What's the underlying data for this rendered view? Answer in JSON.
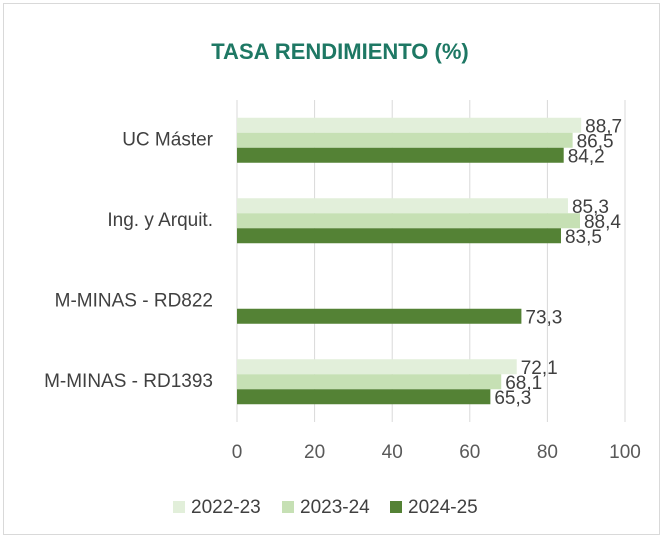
{
  "chart_data": {
    "type": "bar",
    "orientation": "horizontal",
    "title": "TASA RENDIMIENTO (%)",
    "categories": [
      "UC Máster",
      "Ing. y Arquit.",
      "M-MINAS  - RD822",
      "M-MINAS - RD1393"
    ],
    "series": [
      {
        "name": "2022-23",
        "color": "#e2efda",
        "values": [
          88.7,
          85.3,
          null,
          72.1
        ],
        "value_labels": [
          "88,7",
          "85,3",
          null,
          "72,1"
        ]
      },
      {
        "name": "2023-24",
        "color": "#c6e0b4",
        "values": [
          86.5,
          88.4,
          null,
          68.1
        ],
        "value_labels": [
          "86,5",
          "88,4",
          null,
          "68,1"
        ]
      },
      {
        "name": "2024-25",
        "color": "#548235",
        "values": [
          84.2,
          83.5,
          73.3,
          65.3
        ],
        "value_labels": [
          "84,2",
          "83,5",
          "73,3",
          "65,3"
        ]
      }
    ],
    "xlim": [
      0,
      100
    ],
    "xticks": [
      0,
      20,
      40,
      60,
      80,
      100
    ],
    "grid": true,
    "legend": "bottom"
  }
}
